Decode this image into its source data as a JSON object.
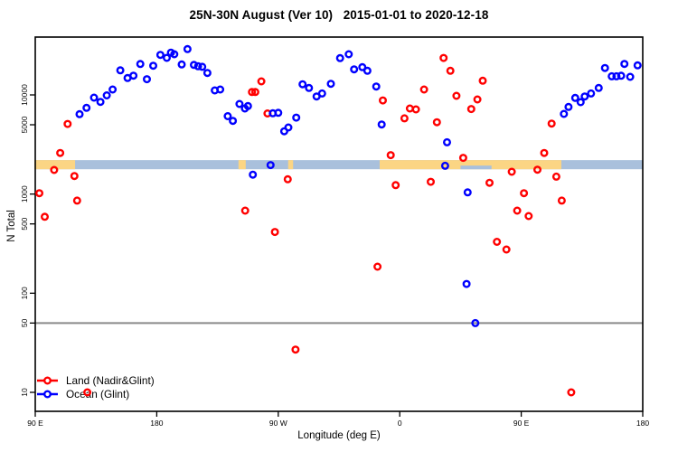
{
  "chart_data": {
    "type": "scatter",
    "title": "25N-30N August (Ver 10)   2015-01-01 to 2020-12-18",
    "xlabel": "Longitude (deg E)",
    "ylabel": "N Total",
    "x_axis": {
      "note": "longitude axis wraps eastward from 90E; continuous degrees 90..540",
      "range_deg": [
        90,
        540
      ],
      "ticks": [
        {
          "deg": 90,
          "label": "90 E"
        },
        {
          "deg": 180,
          "label": "180"
        },
        {
          "deg": 270,
          "label": "90 W"
        },
        {
          "deg": 360,
          "label": "0"
        },
        {
          "deg": 450,
          "label": "90 E"
        },
        {
          "deg": 540,
          "label": "180"
        }
      ]
    },
    "y_axis": {
      "scale": "log10",
      "top_value": 38300,
      "bottom_value": 6.5,
      "ticks": [
        {
          "value": 10000,
          "label": "10000"
        },
        {
          "value": 5000,
          "label": "5000"
        },
        {
          "value": 1000,
          "label": "1000"
        },
        {
          "value": 500,
          "label": "500"
        },
        {
          "value": 100,
          "label": "100"
        },
        {
          "value": 50,
          "label": "50"
        },
        {
          "value": 10,
          "label": "10"
        }
      ]
    },
    "reference_line": {
      "value": 50,
      "color": "#8a8a8a"
    },
    "land_ocean_strip": {
      "value_top": 2200,
      "value_bottom": 1780,
      "ocean_color": "#a9c0dc",
      "land_color": "#fbd584",
      "land_segments_deg": [
        [
          90,
          119.5
        ],
        [
          241.2,
          245.9
        ],
        [
          278,
          281
        ],
        [
          345.8,
          479.7
        ]
      ],
      "ocean_notches": [
        {
          "from_deg": 405,
          "to_deg": 428,
          "bottom_fraction": 0.4
        }
      ]
    },
    "grid": "off",
    "legend_position": "bottom-left",
    "series": [
      {
        "name": "Land (Nadir&Glint)",
        "color": "#ff0000",
        "points": [
          [
            93,
            1020
          ],
          [
            97,
            590
          ],
          [
            104,
            1750
          ],
          [
            108.5,
            2600
          ],
          [
            114,
            5100
          ],
          [
            119,
            1520
          ],
          [
            121,
            860
          ],
          [
            128.6,
            10
          ],
          [
            245.5,
            680
          ],
          [
            250.5,
            10700
          ],
          [
            253,
            10700
          ],
          [
            257.5,
            13700
          ],
          [
            262,
            6500
          ],
          [
            267.5,
            415
          ],
          [
            277,
            1410
          ],
          [
            282.8,
            27
          ],
          [
            343.5,
            185
          ],
          [
            347.5,
            8800
          ],
          [
            353.3,
            2470
          ],
          [
            357,
            1230
          ],
          [
            363.5,
            5800
          ],
          [
            367.5,
            7300
          ],
          [
            372,
            7150
          ],
          [
            378,
            11350
          ],
          [
            383,
            1330
          ],
          [
            387.5,
            5300
          ],
          [
            392.5,
            23600
          ],
          [
            397.5,
            17500
          ],
          [
            402,
            9800
          ],
          [
            407,
            2320
          ],
          [
            413,
            7200
          ],
          [
            417.5,
            9000
          ],
          [
            421.5,
            13900
          ],
          [
            426.5,
            1300
          ],
          [
            432,
            330
          ],
          [
            439,
            276
          ],
          [
            443,
            1680
          ],
          [
            447,
            680
          ],
          [
            452,
            1020
          ],
          [
            455.5,
            600
          ],
          [
            462,
            1760
          ],
          [
            467,
            2600
          ],
          [
            472.5,
            5140
          ],
          [
            476,
            1500
          ],
          [
            480,
            860
          ],
          [
            487,
            10
          ]
        ]
      },
      {
        "name": "Ocean (Glint)",
        "color": "#0000ff",
        "points": [
          [
            122.8,
            6400
          ],
          [
            128,
            7400
          ],
          [
            133.5,
            9400
          ],
          [
            138.3,
            8500
          ],
          [
            143,
            9900
          ],
          [
            147.3,
            11350
          ],
          [
            153,
            17700
          ],
          [
            158.4,
            14800
          ],
          [
            162.7,
            15650
          ],
          [
            167.8,
            20500
          ],
          [
            172.7,
            14400
          ],
          [
            177.4,
            19700
          ],
          [
            182.7,
            25350
          ],
          [
            187.4,
            23650
          ],
          [
            190.5,
            26700
          ],
          [
            193,
            25700
          ],
          [
            198.5,
            20300
          ],
          [
            202.8,
            29000
          ],
          [
            207.5,
            20100
          ],
          [
            210.6,
            19450
          ],
          [
            213.7,
            19200
          ],
          [
            217.5,
            16650
          ],
          [
            223,
            11100
          ],
          [
            227,
            11350
          ],
          [
            232.6,
            6100
          ],
          [
            236.4,
            5470
          ],
          [
            241.3,
            8100
          ],
          [
            245.3,
            7300
          ],
          [
            247.6,
            7730
          ],
          [
            251.2,
            1570
          ],
          [
            264.3,
            1960
          ],
          [
            266,
            6530
          ],
          [
            270,
            6600
          ],
          [
            274.4,
            4300
          ],
          [
            277.5,
            4700
          ],
          [
            283.3,
            5900
          ],
          [
            288,
            12800
          ],
          [
            292.8,
            11750
          ],
          [
            298.4,
            9640
          ],
          [
            302.5,
            10350
          ],
          [
            309,
            12950
          ],
          [
            315.8,
            23500
          ],
          [
            322.2,
            25700
          ],
          [
            326.2,
            18100
          ],
          [
            332.3,
            19050
          ],
          [
            336,
            17500
          ],
          [
            342.6,
            12150
          ],
          [
            346.6,
            5030
          ],
          [
            393.6,
            1930
          ],
          [
            395,
            3330
          ],
          [
            409.5,
            124
          ],
          [
            410.3,
            1040
          ],
          [
            416,
            50
          ],
          [
            481.6,
            6440
          ],
          [
            485,
            7570
          ],
          [
            490,
            9330
          ],
          [
            494,
            8450
          ],
          [
            497,
            9640
          ],
          [
            501.7,
            10350
          ],
          [
            507.4,
            11750
          ],
          [
            512,
            18700
          ],
          [
            517,
            15400
          ],
          [
            520.5,
            15400
          ],
          [
            524,
            15600
          ],
          [
            526.4,
            20550
          ],
          [
            530.7,
            15210
          ],
          [
            536.2,
            19870
          ]
        ]
      }
    ]
  }
}
